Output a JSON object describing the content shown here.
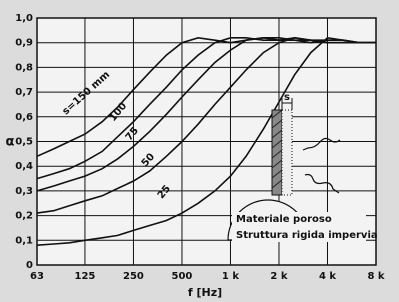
{
  "chart_data": {
    "type": "line",
    "x_scale": "log",
    "grid": true,
    "color": "#111111",
    "y_label": "α",
    "x_label": "f [Hz]",
    "x": [
      63,
      80,
      100,
      125,
      160,
      200,
      250,
      315,
      400,
      500,
      630,
      800,
      1000,
      1250,
      1600,
      2000,
      2500,
      3150,
      4000,
      5000,
      6300,
      8000
    ],
    "xlim": [
      63,
      8000
    ],
    "xticks": [
      63,
      125,
      250,
      500,
      {
        "value": 1000,
        "label": "1 k"
      },
      {
        "value": 2000,
        "label": "2 k"
      },
      {
        "value": 4000,
        "label": "4 k"
      },
      {
        "value": 8000,
        "label": "8 k"
      }
    ],
    "ylim": [
      0,
      1
    ],
    "yticks": [
      0,
      {
        "value": 0.1,
        "label": "0,1"
      },
      {
        "value": 0.2,
        "label": "0,2"
      },
      {
        "value": 0.3,
        "label": "0,3"
      },
      {
        "value": 0.4,
        "label": "0,4"
      },
      {
        "value": 0.5,
        "label": "0,5"
      },
      {
        "value": 0.6,
        "label": "0,6"
      },
      {
        "value": 0.7,
        "label": "0,7"
      },
      {
        "value": 0.8,
        "label": "0,8"
      },
      {
        "value": 0.9,
        "label": "0,9"
      },
      {
        "value": 1,
        "label": "1,0"
      }
    ],
    "series": [
      {
        "name": "s=150 mm",
        "values": [
          0.44,
          0.47,
          0.5,
          0.53,
          0.58,
          0.64,
          0.71,
          0.78,
          0.85,
          0.9,
          0.92,
          0.91,
          0.9,
          0.91,
          0.92,
          0.91,
          0.91,
          0.91,
          0.91,
          0.91,
          0.9,
          0.9
        ]
      },
      {
        "name": "100",
        "values": [
          0.35,
          0.37,
          0.39,
          0.42,
          0.46,
          0.52,
          0.58,
          0.65,
          0.72,
          0.79,
          0.85,
          0.9,
          0.92,
          0.92,
          0.91,
          0.91,
          0.92,
          0.91,
          0.9,
          0.9,
          0.9,
          0.9
        ]
      },
      {
        "name": "75",
        "values": [
          0.3,
          0.32,
          0.34,
          0.36,
          0.39,
          0.43,
          0.48,
          0.54,
          0.61,
          0.68,
          0.75,
          0.82,
          0.87,
          0.91,
          0.92,
          0.92,
          0.91,
          0.9,
          0.91,
          0.91,
          0.9,
          0.9
        ]
      },
      {
        "name": "50",
        "values": [
          0.21,
          0.22,
          0.24,
          0.26,
          0.28,
          0.31,
          0.34,
          0.38,
          0.44,
          0.5,
          0.57,
          0.65,
          0.72,
          0.79,
          0.86,
          0.9,
          0.92,
          0.91,
          0.9,
          0.9,
          0.9,
          0.9
        ]
      },
      {
        "name": "25",
        "values": [
          0.08,
          0.085,
          0.09,
          0.1,
          0.11,
          0.12,
          0.14,
          0.16,
          0.18,
          0.21,
          0.25,
          0.3,
          0.36,
          0.44,
          0.55,
          0.66,
          0.77,
          0.86,
          0.92,
          0.91,
          0.9,
          0.9
        ]
      }
    ],
    "annotations": [
      "s",
      "Materiale poroso",
      "Struttura rigida impervia"
    ]
  }
}
